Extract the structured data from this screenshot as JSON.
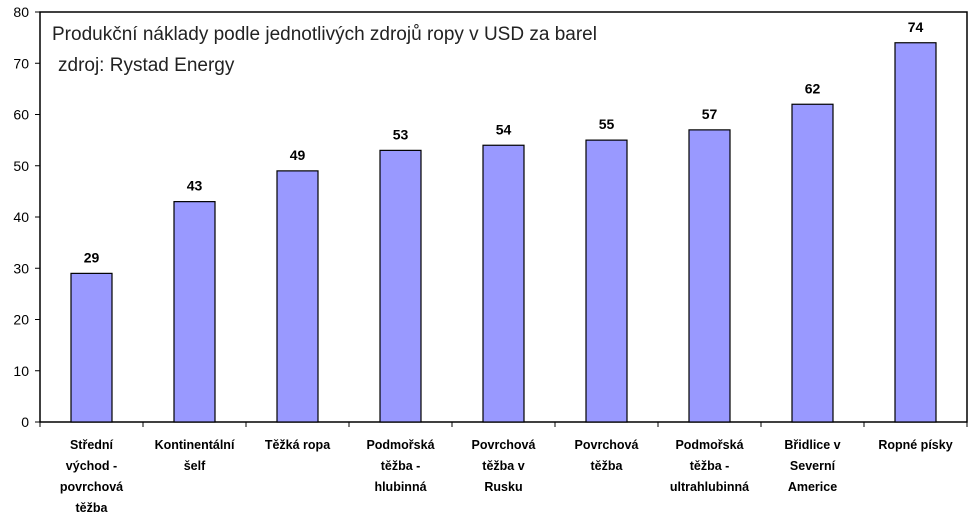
{
  "chart_data": {
    "type": "bar",
    "title": "Produkční náklady podle jednotlivých zdrojů ropy v USD za barel",
    "subtitle": "zdroj: Rystad Energy",
    "categories": [
      [
        "Střední",
        "východ -",
        "povrchová",
        "těžba"
      ],
      [
        "Kontinentální",
        "šelf"
      ],
      [
        "Těžká ropa"
      ],
      [
        "Podmořská",
        "těžba -",
        "hlubinná"
      ],
      [
        "Povrchová",
        "těžba v",
        "Rusku"
      ],
      [
        "Povrchová",
        "těžba"
      ],
      [
        "Podmořská",
        "těžba -",
        "ultrahlubinná"
      ],
      [
        "Břidlice v",
        "Severní",
        "Americe"
      ],
      [
        "Ropné písky"
      ]
    ],
    "values": [
      29,
      43,
      49,
      53,
      54,
      55,
      57,
      62,
      74
    ],
    "ylim": [
      0,
      80
    ],
    "yticks": [
      0,
      10,
      20,
      30,
      40,
      50,
      60,
      70,
      80
    ],
    "grid": false,
    "legend": "none",
    "bar_color": "#9999ff",
    "bar_stroke": "#000000"
  }
}
